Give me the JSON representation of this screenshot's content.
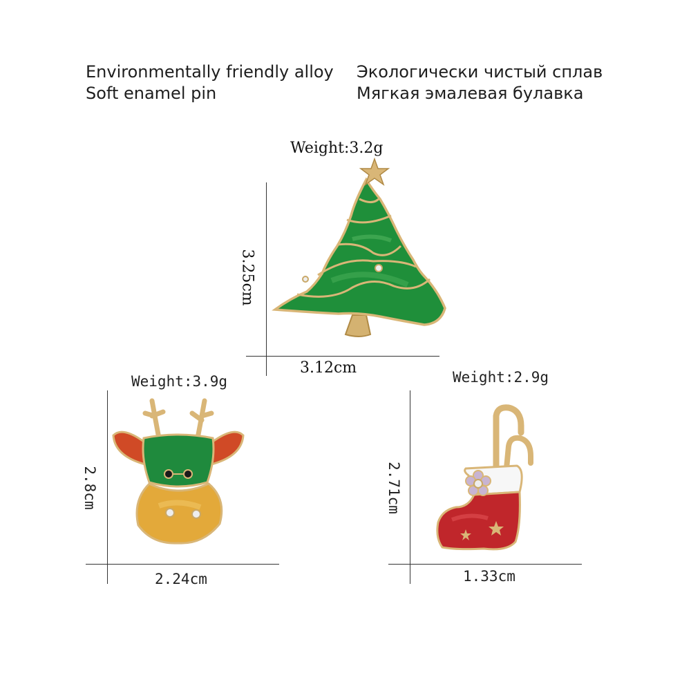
{
  "header": {
    "en_line1": "Environmentally friendly alloy",
    "en_line2": "Soft enamel pin",
    "ru_line1": "Экологически чистый сплав",
    "ru_line2": "Мягкая эмалевая булавка"
  },
  "products": {
    "tree": {
      "weight": "Weight:3.2g",
      "height": "3.25cm",
      "width": "3.12cm"
    },
    "reindeer": {
      "weight": "Weight:3.9g",
      "height": "2.8cm",
      "width": "2.24cm"
    },
    "stocking": {
      "weight": "Weight:2.9g",
      "height": "2.71cm",
      "width": "1.33cm"
    }
  },
  "colors": {
    "enamel_green": "#1f8f3a",
    "enamel_red": "#c0262b",
    "enamel_orange": "#d8532a",
    "enamel_yellow": "#e3a93a",
    "gold_alloy": "#d9b677"
  }
}
